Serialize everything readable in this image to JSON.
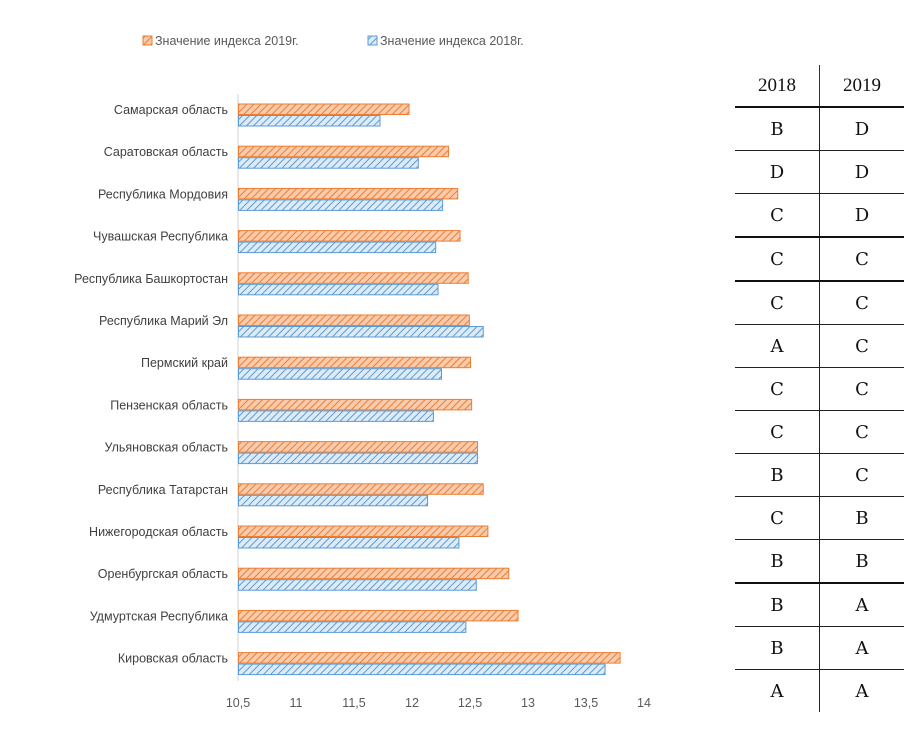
{
  "chart_data": {
    "type": "bar",
    "orientation": "horizontal",
    "categories": [
      "Самарская область",
      "Саратовская область",
      "Республика Мордовия",
      "Чувашская Республика",
      "Республика Башкортостан",
      "Республика Марий Эл",
      "Пермский край",
      "Пензенская область",
      "Ульяновская область",
      "Республика Татарстан",
      "Нижегородская область",
      "Оренбургская область",
      "Удмуртская Республика",
      "Кировская область"
    ],
    "series": [
      {
        "name": "Значение индекса 2019г.",
        "color": "#ED7D31",
        "values": [
          11.97,
          12.31,
          12.39,
          12.41,
          12.48,
          12.49,
          12.5,
          12.51,
          12.56,
          12.61,
          12.65,
          12.83,
          12.91,
          13.79
        ]
      },
      {
        "name": "Значение индекса 2018г.",
        "color": "#5B9BD5",
        "values": [
          11.72,
          12.05,
          12.26,
          12.2,
          12.22,
          12.61,
          12.25,
          12.18,
          12.56,
          12.13,
          12.4,
          12.55,
          12.46,
          13.66
        ]
      }
    ],
    "xticks": [
      "10,5",
      "11",
      "11,5",
      "12",
      "12,5",
      "13",
      "13,5",
      "14"
    ],
    "xlim": [
      10.5,
      14
    ],
    "grid": false,
    "legend": "top"
  },
  "table": {
    "headers": [
      "2018",
      "2019"
    ],
    "rows": [
      [
        "B",
        "D"
      ],
      [
        "D",
        "D"
      ],
      [
        "C",
        "D"
      ],
      [
        "C",
        "C"
      ],
      [
        "C",
        "C"
      ],
      [
        "A",
        "C"
      ],
      [
        "C",
        "C"
      ],
      [
        "C",
        "C"
      ],
      [
        "B",
        "C"
      ],
      [
        "C",
        "B"
      ],
      [
        "B",
        "B"
      ],
      [
        "B",
        "A"
      ],
      [
        "B",
        "A"
      ],
      [
        "A",
        "A"
      ]
    ],
    "thick_row_breaks": [
      3,
      4,
      11
    ]
  }
}
